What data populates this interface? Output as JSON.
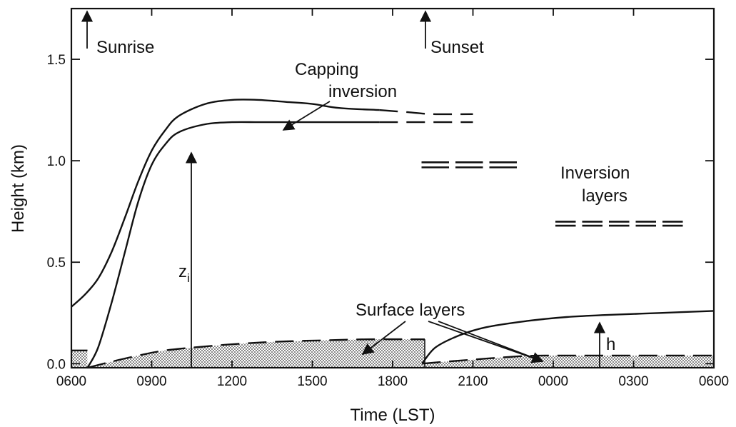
{
  "chart_data": {
    "type": "line",
    "title": "",
    "xlabel": "Time (LST)",
    "ylabel": "Height (km)",
    "x_ticks": [
      "0600",
      "0900",
      "1200",
      "1500",
      "1800",
      "2100",
      "0000",
      "0300",
      "0600"
    ],
    "y_ticks": [
      "0.0",
      "0.5",
      "1.0",
      "1.5"
    ],
    "xlim_hours": [
      0,
      24
    ],
    "ylim": [
      -0.02,
      1.75
    ],
    "annotations": {
      "sunrise": "Sunrise",
      "sunset": "Sunset",
      "capping_inversion_line1": "Capping",
      "capping_inversion_line2": "inversion",
      "inversion_layers_line1": "Inversion",
      "inversion_layers_line2": "layers",
      "surface_layers": "Surface layers",
      "zi_main": "z",
      "zi_sub": "i",
      "h": "h"
    },
    "events": {
      "sunrise_hour": 0.6,
      "sunset_hour": 13.1
    },
    "series": [
      {
        "id": "capping_top",
        "style": "solid",
        "points": [
          [
            0,
            0.28
          ],
          [
            0.5,
            0.34
          ],
          [
            1,
            0.42
          ],
          [
            1.5,
            0.55
          ],
          [
            2,
            0.72
          ],
          [
            2.5,
            0.9
          ],
          [
            3,
            1.05
          ],
          [
            3.5,
            1.15
          ],
          [
            4,
            1.22
          ],
          [
            5,
            1.28
          ],
          [
            6,
            1.3
          ],
          [
            7,
            1.3
          ],
          [
            8,
            1.29
          ],
          [
            9,
            1.28
          ],
          [
            10,
            1.26
          ],
          [
            11.5,
            1.25
          ]
        ]
      },
      {
        "id": "capping_top_dashed",
        "style": "dashed",
        "points": [
          [
            11.5,
            1.25
          ],
          [
            12.5,
            1.24
          ],
          [
            13.5,
            1.23
          ],
          [
            15,
            1.23
          ]
        ]
      },
      {
        "id": "zi",
        "style": "solid",
        "points": [
          [
            0.6,
            -0.02
          ],
          [
            1,
            0.08
          ],
          [
            1.5,
            0.3
          ],
          [
            2,
            0.55
          ],
          [
            2.5,
            0.8
          ],
          [
            3,
            0.98
          ],
          [
            3.5,
            1.08
          ],
          [
            4,
            1.14
          ],
          [
            5,
            1.18
          ],
          [
            6,
            1.19
          ],
          [
            7,
            1.19
          ],
          [
            8,
            1.19
          ],
          [
            9,
            1.19
          ],
          [
            10,
            1.19
          ],
          [
            11.5,
            1.19
          ]
        ]
      },
      {
        "id": "zi_dashed",
        "style": "dashed",
        "points": [
          [
            11.5,
            1.19
          ],
          [
            12.5,
            1.19
          ],
          [
            13.5,
            1.19
          ],
          [
            15,
            1.19
          ]
        ]
      },
      {
        "id": "surface_layer_day",
        "style": "dashed",
        "fill": "stipple",
        "points": [
          [
            0.6,
            -0.02
          ],
          [
            1.5,
            0.01
          ],
          [
            2.5,
            0.04
          ],
          [
            3.5,
            0.065
          ],
          [
            5,
            0.085
          ],
          [
            6.5,
            0.1
          ],
          [
            8,
            0.11
          ],
          [
            9.5,
            0.115
          ],
          [
            11,
            0.12
          ],
          [
            13.2,
            0.12
          ]
        ]
      },
      {
        "id": "h",
        "style": "solid",
        "points": [
          [
            13.1,
            0.0
          ],
          [
            13.6,
            0.08
          ],
          [
            14.5,
            0.14
          ],
          [
            15.5,
            0.18
          ],
          [
            17,
            0.21
          ],
          [
            18.5,
            0.23
          ],
          [
            20,
            0.24
          ],
          [
            22,
            0.25
          ],
          [
            24,
            0.26
          ]
        ]
      },
      {
        "id": "surface_layer_night",
        "style": "dashed",
        "fill": "stipple",
        "points": [
          [
            13.1,
            0.0
          ],
          [
            14,
            0.01
          ],
          [
            15,
            0.02
          ],
          [
            16,
            0.03
          ],
          [
            17,
            0.038
          ],
          [
            18,
            0.04
          ],
          [
            20,
            0.04
          ],
          [
            22,
            0.04
          ],
          [
            24,
            0.04
          ]
        ]
      },
      {
        "id": "morning_residual_surface",
        "style": "dashed",
        "fill": "stipple",
        "points": [
          [
            0,
            0.065
          ],
          [
            0.6,
            0.065
          ]
        ]
      }
    ],
    "inversion_pairs": [
      {
        "x0": 13.0,
        "x1": 16.8,
        "y": 0.98,
        "dy": 0.025,
        "segments": 3
      },
      {
        "x0": 18.0,
        "x1": 23.0,
        "y": 0.69,
        "dy": 0.02,
        "segments": 5
      }
    ],
    "grid": false
  }
}
